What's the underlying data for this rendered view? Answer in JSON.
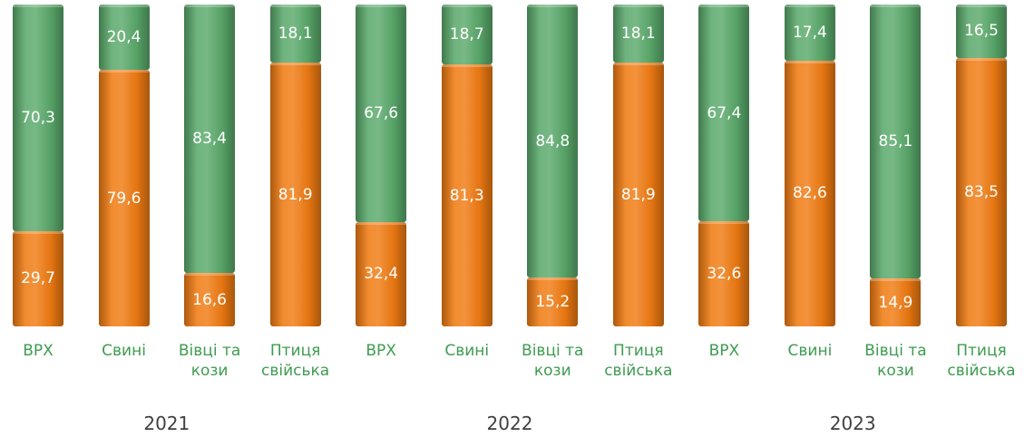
{
  "chart_data": {
    "type": "stacked_bar",
    "categories": [
      "ВРХ",
      "Свині",
      "Вівці та кози",
      "Птиця свійська",
      "ВРХ",
      "Свині",
      "Вівці та кози",
      "Птиця свійська",
      "ВРХ",
      "Свині",
      "Вівці та кози",
      "Птиця свійська"
    ],
    "groups": [
      "2021",
      "2022",
      "2023"
    ],
    "series": [
      {
        "color": "#f07b12",
        "values": [
          29.7,
          79.6,
          16.6,
          81.9,
          32.4,
          81.3,
          15.2,
          81.9,
          32.6,
          82.6,
          14.9,
          83.5
        ],
        "value_labels": [
          "29,7",
          "79,6",
          "16,6",
          "81,9",
          "32,4",
          "81,3",
          "15,2",
          "81,9",
          "32,6",
          "82,6",
          "14,9",
          "83,5"
        ]
      },
      {
        "color": "#5aa96b",
        "values": [
          70.3,
          20.4,
          83.4,
          18.1,
          67.6,
          18.7,
          84.8,
          18.1,
          67.4,
          17.4,
          85.1,
          16.5
        ],
        "value_labels": [
          "70,3",
          "20,4",
          "83,4",
          "18,1",
          "67,6",
          "18,7",
          "84,8",
          "18,1",
          "67,4",
          "17,4",
          "85,1",
          "16,5"
        ]
      }
    ],
    "ylim": [
      0,
      100
    ]
  }
}
